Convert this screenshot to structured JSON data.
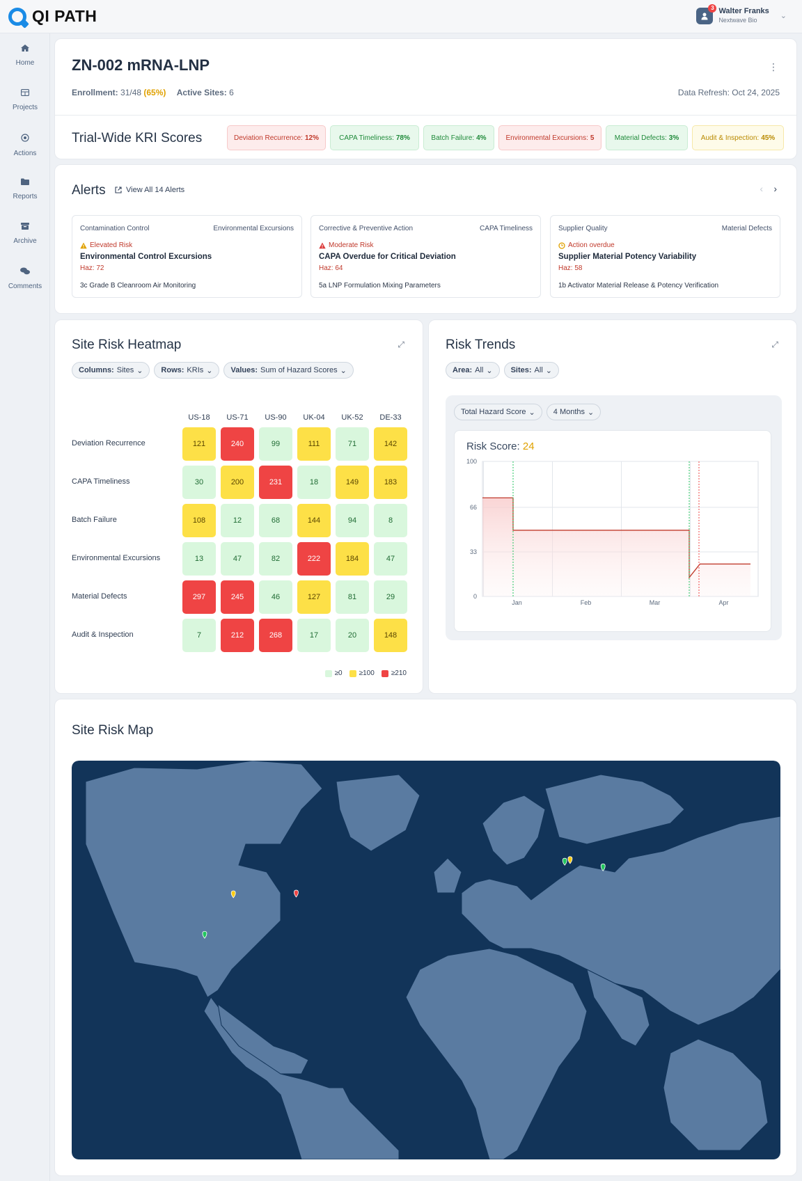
{
  "app": {
    "name": "QI PATH"
  },
  "user": {
    "name": "Walter Franks",
    "org": "Nextwave Bio",
    "notifications": "3"
  },
  "nav": [
    {
      "label": "Home",
      "icon": "home-icon"
    },
    {
      "label": "Projects",
      "icon": "grid-icon"
    },
    {
      "label": "Actions",
      "icon": "target-icon"
    },
    {
      "label": "Reports",
      "icon": "folder-icon"
    },
    {
      "label": "Archive",
      "icon": "archive-icon"
    },
    {
      "label": "Comments",
      "icon": "comments-icon"
    }
  ],
  "trial": {
    "title": "ZN-002 mRNA-LNP",
    "enrollment_label": "Enrollment:",
    "enrollment_value": "31/48",
    "enrollment_pct": "(65%)",
    "active_sites_label": "Active Sites:",
    "active_sites_value": "6",
    "refresh": "Data Refresh: Oct 24, 2025"
  },
  "kri": {
    "title": "Trial-Wide KRI Scores",
    "chips": [
      {
        "label": "Deviation Recurrence:",
        "value": "12%",
        "status": "red"
      },
      {
        "label": "CAPA Timeliness:",
        "value": "78%",
        "status": "green"
      },
      {
        "label": "Batch Failure:",
        "value": "4%",
        "status": "green"
      },
      {
        "label": "Environmental Excursions:",
        "value": "5",
        "status": "red"
      },
      {
        "label": "Material Defects:",
        "value": "3%",
        "status": "green"
      },
      {
        "label": "Audit & Inspection:",
        "value": "45%",
        "status": "yellow"
      }
    ]
  },
  "alerts": {
    "title": "Alerts",
    "view_all": "View All 14 Alerts",
    "items": [
      {
        "category": "Contamination Control",
        "kri": "Environmental Excursions",
        "risk": "Elevated Risk",
        "risk_color": "#c0392b",
        "title": "Environmental Control Excursions",
        "haz": "Haz: 72",
        "step": "3c Grade B Cleanroom Air Monitoring"
      },
      {
        "category": "Corrective & Preventive Action",
        "kri": "CAPA Timeliness",
        "risk": "Moderate Risk",
        "risk_color": "#c0392b",
        "title": "CAPA Overdue for Critical Deviation",
        "haz": "Haz: 64",
        "step": "5a LNP Formulation Mixing Parameters"
      },
      {
        "category": "Supplier Quality",
        "kri": "Material Defects",
        "risk": "Action overdue",
        "risk_color": "#c0392b",
        "title": "Supplier Material Potency Variability",
        "haz": "Haz: 58",
        "step": "1b Activator Material Release & Potency Verification"
      }
    ]
  },
  "heatmap": {
    "title": "Site Risk Heatmap",
    "filters": [
      {
        "key": "Columns:",
        "value": "Sites"
      },
      {
        "key": "Rows:",
        "value": "KRIs"
      },
      {
        "key": "Values:",
        "value": "Sum of Hazard Scores"
      }
    ],
    "columns": [
      "US-18",
      "US-71",
      "US-90",
      "UK-04",
      "UK-52",
      "DE-33"
    ],
    "rows": [
      "Deviation Recurrence",
      "CAPA Timeliness",
      "Batch Failure",
      "Environmental Excursions",
      "Material Defects",
      "Audit & Inspection"
    ],
    "values": [
      [
        121,
        240,
        99,
        111,
        71,
        142
      ],
      [
        30,
        200,
        231,
        18,
        149,
        183
      ],
      [
        108,
        12,
        68,
        144,
        94,
        8
      ],
      [
        13,
        47,
        82,
        222,
        184,
        47
      ],
      [
        297,
        245,
        46,
        127,
        81,
        29
      ],
      [
        7,
        212,
        268,
        17,
        20,
        148
      ]
    ],
    "legend": [
      {
        "label": "≥0",
        "color": "#d9f7dd"
      },
      {
        "label": "≥100",
        "color": "#fde047"
      },
      {
        "label": "≥210",
        "color": "#ef4444"
      }
    ],
    "colors": {
      "low": "#d9f7dd",
      "mid": "#fde047",
      "high": "#ef4444"
    }
  },
  "trends": {
    "title": "Risk Trends",
    "filters": [
      {
        "key": "Area:",
        "value": "All"
      },
      {
        "key": "Sites:",
        "value": "All"
      }
    ],
    "metric": "Total Hazard Score",
    "period": "4 Months",
    "score_label": "Risk Score:",
    "score_value": "24"
  },
  "chart_data": {
    "type": "line",
    "title": "Risk Score: 24",
    "x_ticks": [
      "Jan",
      "Feb",
      "Mar",
      "Apr"
    ],
    "y_ticks": [
      "0",
      "33",
      "66",
      "100"
    ],
    "ylim": [
      0,
      100
    ],
    "series": [
      {
        "values": [
          73,
          73,
          49,
          49,
          49,
          14,
          24,
          24
        ]
      }
    ],
    "x_positions_months": [
      0,
      0.4,
      0.4,
      1.5,
      2.7,
      2.7,
      2.84,
      3.5
    ]
  },
  "map": {
    "title": "Site Risk Map",
    "sites": [
      {
        "id": "US-18",
        "lon": -87.8,
        "lat": 42.0,
        "color": "#facc15"
      },
      {
        "id": "US-71",
        "lon": -71.4,
        "lat": 42.2,
        "color": "#ef4444"
      },
      {
        "id": "US-90",
        "lon": -95.3,
        "lat": 29.8,
        "color": "#22c55e"
      },
      {
        "id": "UK-04",
        "lon": -1.3,
        "lat": 51.8,
        "color": "#22c55e"
      },
      {
        "id": "UK-52",
        "lon": 0.1,
        "lat": 52.3,
        "color": "#facc15"
      },
      {
        "id": "DE-33",
        "lon": 8.7,
        "lat": 50.1,
        "color": "#22c55e"
      }
    ]
  }
}
